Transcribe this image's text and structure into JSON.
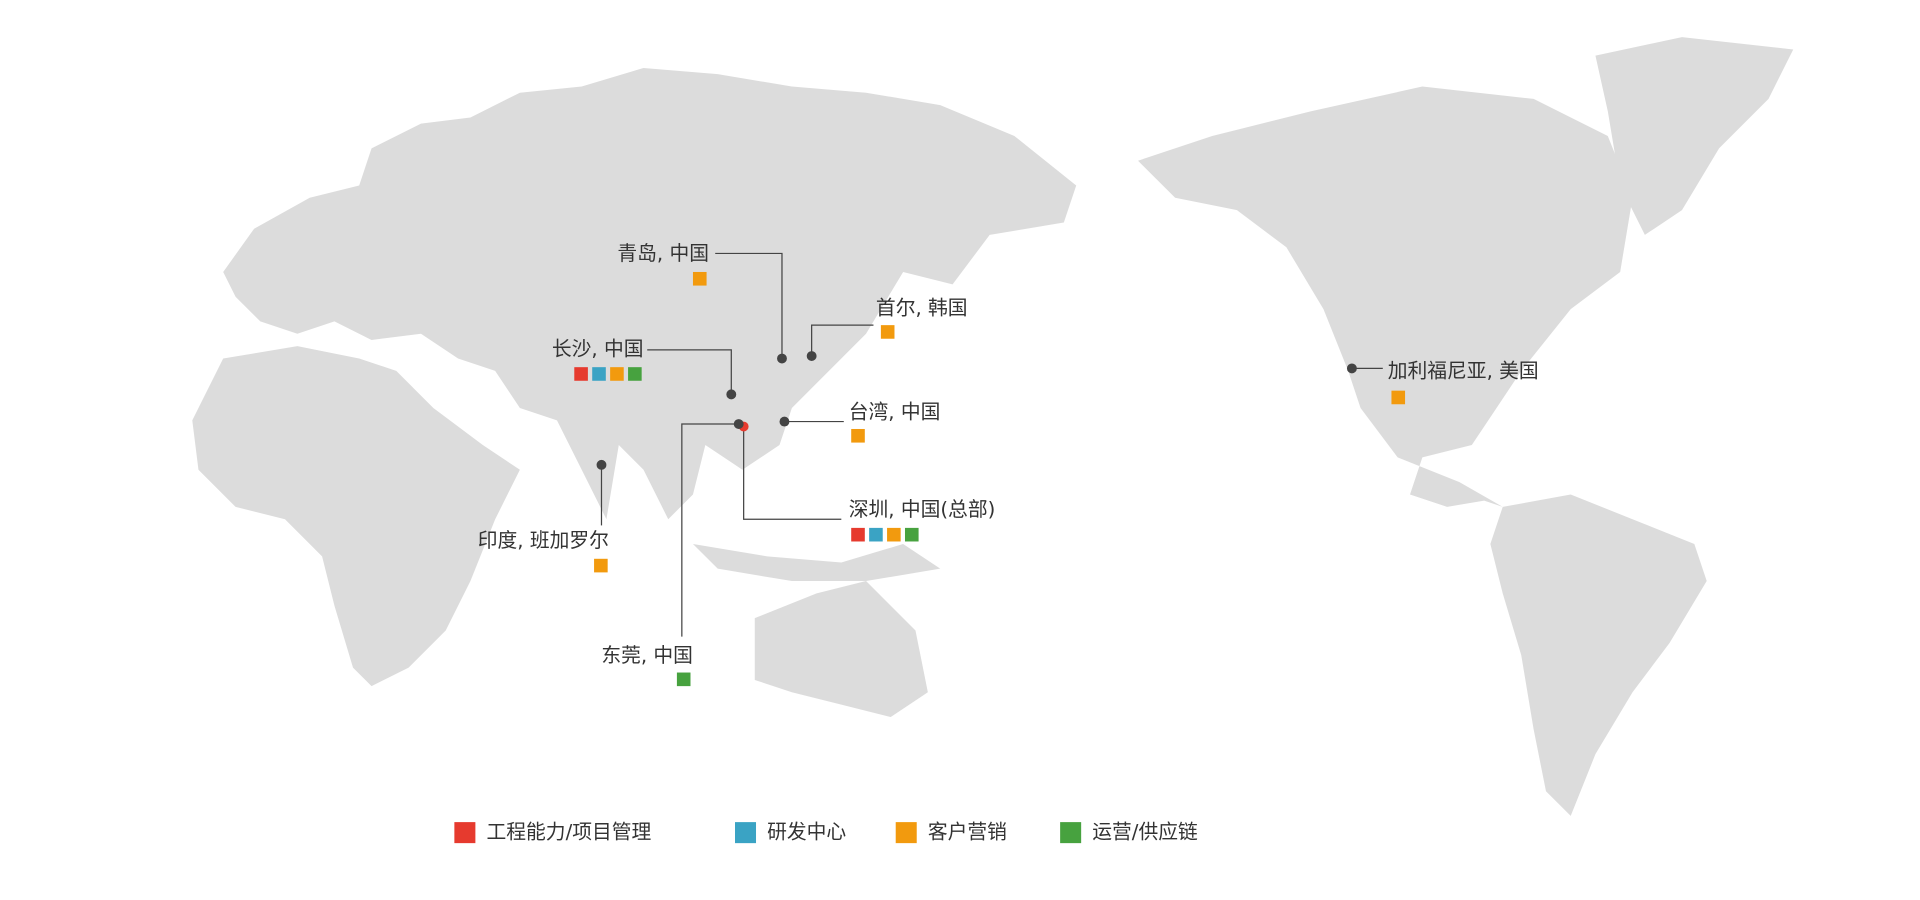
{
  "locations": [
    {
      "label": "青岛, 中国",
      "colors": [
        "#f29a0e"
      ]
    },
    {
      "label": "首尔, 韩国",
      "colors": [
        "#f29a0e"
      ]
    },
    {
      "label": "长沙, 中国",
      "colors": [
        "#e63a2e",
        "#3aa3c4",
        "#f29a0e",
        "#47a23f"
      ]
    },
    {
      "label": "台湾, 中国",
      "colors": [
        "#f29a0e"
      ]
    },
    {
      "label": "深圳, 中国(总部)",
      "colors": [
        "#e63a2e",
        "#3aa3c4",
        "#f29a0e",
        "#47a23f"
      ]
    },
    {
      "label": "东莞, 中国",
      "colors": [
        "#47a23f"
      ]
    },
    {
      "label": "印度, 班加罗尔",
      "colors": [
        "#f29a0e"
      ]
    },
    {
      "label": "加利福尼亚, 美国",
      "colors": [
        "#f29a0e"
      ]
    }
  ],
  "legend": [
    {
      "name": "工程能力/项目管理",
      "color": "#e63a2e"
    },
    {
      "name": "研发中心",
      "color": "#3aa3c4"
    },
    {
      "name": "客户营销",
      "color": "#f29a0e"
    },
    {
      "name": "运营/供应链",
      "color": "#47a23f"
    }
  ]
}
